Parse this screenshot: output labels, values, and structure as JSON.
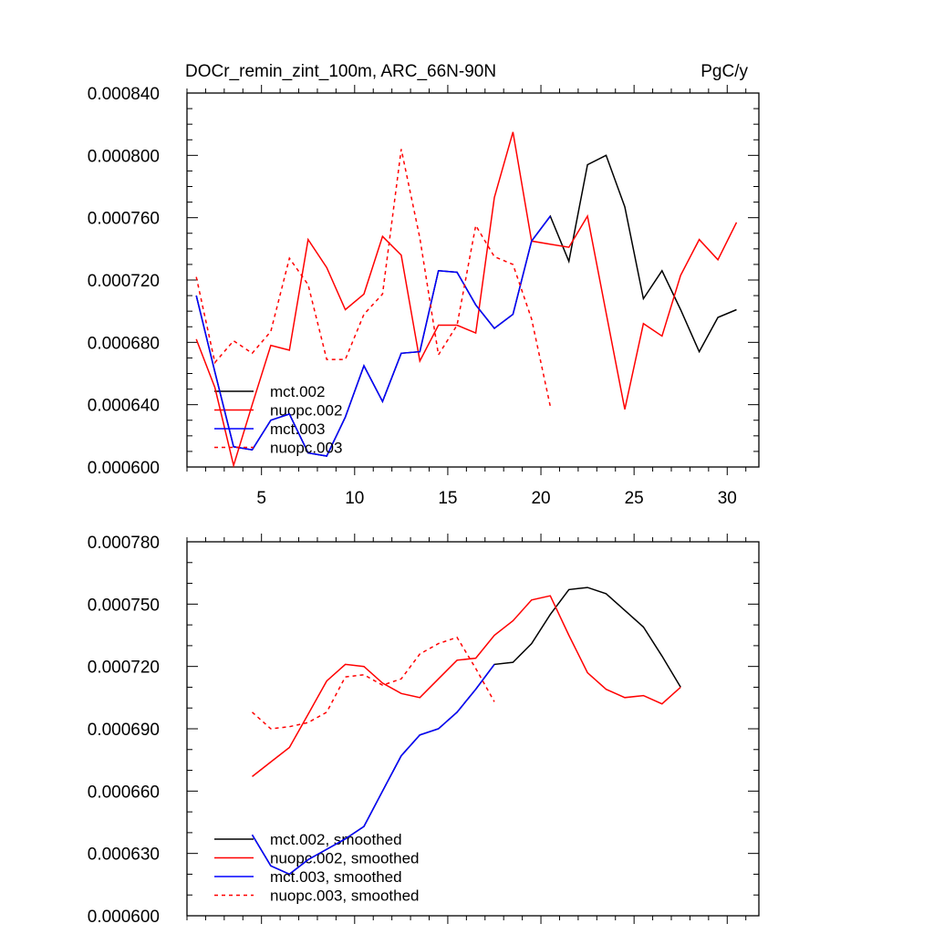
{
  "header": {
    "title": "DOCr_remin_zint_100m, ARC_66N-90N",
    "units": "PgC/y"
  },
  "chart_data": [
    {
      "type": "line",
      "title": "DOCr_remin_zint_100m, ARC_66N-90N",
      "units": "PgC/y",
      "xlim": [
        1,
        31.7
      ],
      "ylim": [
        0.0006,
        0.00084
      ],
      "x_major_ticks": [
        5,
        10,
        15,
        20,
        25,
        30
      ],
      "x_tick_labels": [
        "5",
        "10",
        "15",
        "20",
        "25",
        "30"
      ],
      "y_major_ticks": [
        0.0006,
        0.00064,
        0.00068,
        0.00072,
        0.00076,
        0.0008,
        0.00084
      ],
      "y_tick_labels": [
        "0.000600",
        "0.000640",
        "0.000680",
        "0.000720",
        "0.000760",
        "0.000800",
        "0.000840"
      ],
      "y_minor_step": 1e-05,
      "legend_position": "bottom-left",
      "series": [
        {
          "name": "mct.002",
          "color": "#000000",
          "dash": false,
          "x_start": 1.5,
          "values": [
            0.00071,
            0.000661,
            0.000613,
            0.000611,
            0.00063,
            0.000634,
            0.000609,
            0.000607,
            0.000632,
            0.000665,
            0.000642,
            0.000673,
            0.000674,
            0.000726,
            0.000725,
            0.000704,
            0.000689,
            0.000698,
            0.000745,
            0.000761,
            0.000732,
            0.000794,
            0.0008,
            0.000767,
            0.000708,
            0.000726,
            0.000701,
            0.000674,
            0.000696,
            0.000701
          ]
        },
        {
          "name": "nuopc.002",
          "color": "#ff0000",
          "dash": false,
          "x_start": 1.5,
          "values": [
            0.000682,
            0.000651,
            0.000601,
            0.00064,
            0.000678,
            0.000675,
            0.000746,
            0.000728,
            0.000701,
            0.000711,
            0.000748,
            0.000736,
            0.000668,
            0.000691,
            0.000691,
            0.000686,
            0.000773,
            0.000815,
            0.000745,
            0.000743,
            0.000741,
            0.000761,
            0.000699,
            0.000637,
            0.000692,
            0.000684,
            0.000723,
            0.000746,
            0.000733,
            0.000757
          ]
        },
        {
          "name": "mct.003",
          "color": "#0000ff",
          "dash": false,
          "x_start": 1.5,
          "values": [
            0.00071,
            0.000661,
            0.000613,
            0.000611,
            0.00063,
            0.000634,
            0.000609,
            0.000607,
            0.000632,
            0.000665,
            0.000642,
            0.000673,
            0.000674,
            0.000726,
            0.000725,
            0.000704,
            0.000689,
            0.000698,
            0.000745,
            0.000761
          ]
        },
        {
          "name": "nuopc.003",
          "color": "#ff0000",
          "dash": true,
          "x_start": 1.5,
          "values": [
            0.000722,
            0.000667,
            0.000681,
            0.000673,
            0.000687,
            0.000734,
            0.000717,
            0.000669,
            0.000669,
            0.000698,
            0.000711,
            0.000804,
            0.000747,
            0.000672,
            0.000691,
            0.000755,
            0.000735,
            0.00073,
            0.000695,
            0.000639
          ]
        }
      ]
    },
    {
      "type": "line",
      "xlim": [
        1,
        31.7
      ],
      "ylim": [
        0.0006,
        0.00078
      ],
      "x_major_ticks": [
        5,
        10,
        15,
        20,
        25,
        30
      ],
      "x_tick_labels": [],
      "y_major_ticks": [
        0.0006,
        0.00063,
        0.00066,
        0.00069,
        0.00072,
        0.00075,
        0.00078
      ],
      "y_tick_labels": [
        "0.000600",
        "0.000630",
        "0.000660",
        "0.000690",
        "0.000720",
        "0.000750",
        "0.000780"
      ],
      "y_minor_step": 1e-05,
      "legend_position": "bottom-left",
      "series": [
        {
          "name": "mct.002, smoothed",
          "color": "#000000",
          "dash": false,
          "x_start": 4.5,
          "values": [
            0.000639,
            0.000624,
            0.00062,
            0.000627,
            0.000632,
            0.000637,
            0.000643,
            0.00066,
            0.000677,
            0.000687,
            0.00069,
            0.000698,
            0.000709,
            0.000721,
            0.000722,
            0.000731,
            0.000745,
            0.000757,
            0.000758,
            0.000755,
            0.000747,
            0.000739,
            0.000725,
            0.00071
          ]
        },
        {
          "name": "nuopc.002, smoothed",
          "color": "#ff0000",
          "dash": false,
          "x_start": 4.5,
          "values": [
            0.000667,
            0.000674,
            0.000681,
            0.000697,
            0.000713,
            0.000721,
            0.00072,
            0.000712,
            0.000707,
            0.000705,
            0.000714,
            0.000723,
            0.000724,
            0.000735,
            0.000742,
            0.000752,
            0.000754,
            0.000735,
            0.000717,
            0.000709,
            0.000705,
            0.000706,
            0.000702,
            0.00071
          ]
        },
        {
          "name": "mct.003, smoothed",
          "color": "#0000ff",
          "dash": false,
          "x_start": 4.5,
          "values": [
            0.000639,
            0.000624,
            0.00062,
            0.000627,
            0.000632,
            0.000637,
            0.000643,
            0.00066,
            0.000677,
            0.000687,
            0.00069,
            0.000698,
            0.000709,
            0.000721
          ]
        },
        {
          "name": "nuopc.003, smoothed",
          "color": "#ff0000",
          "dash": true,
          "x_start": 4.5,
          "values": [
            0.000698,
            0.00069,
            0.000691,
            0.000693,
            0.000698,
            0.000715,
            0.000716,
            0.000711,
            0.000714,
            0.000726,
            0.000731,
            0.000734,
            0.000719,
            0.000703
          ]
        }
      ]
    }
  ]
}
